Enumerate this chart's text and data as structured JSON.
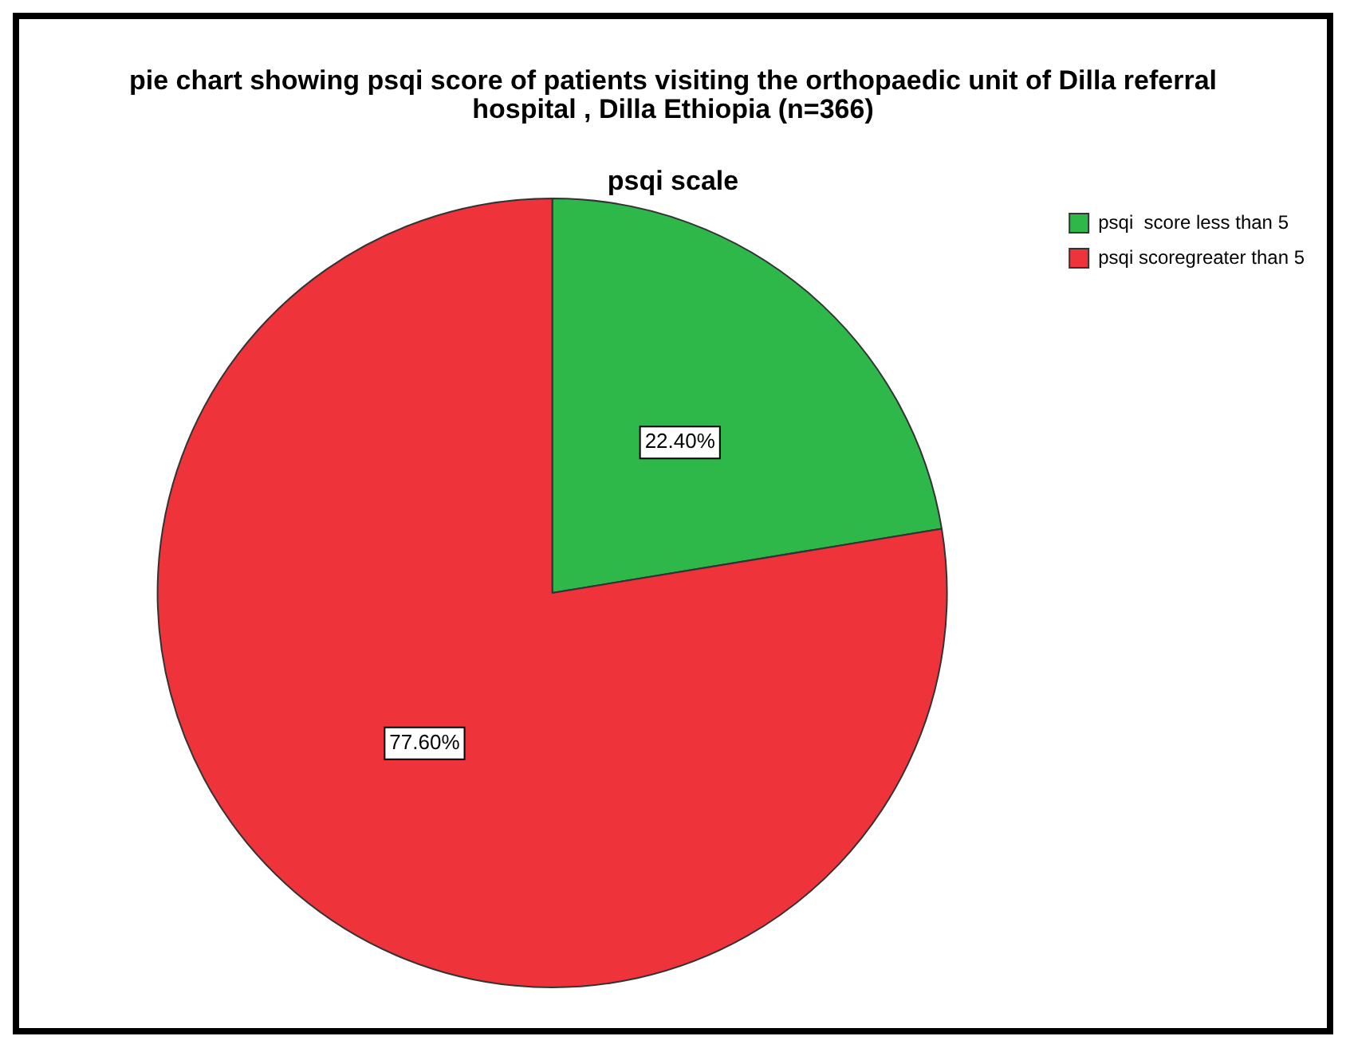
{
  "chart_data": {
    "type": "pie",
    "title": "pie chart showing psqi score of  patients visiting the orthopaedic unit of Dilla referral hospital , Dilla  Ethiopia (n=366)",
    "subtitle": "psqi scale",
    "categories": [
      "psqi  score less than 5",
      "psqi scoregreater than 5"
    ],
    "values": [
      22.4,
      77.6
    ],
    "colors": [
      "#2fb84a",
      "#ef333b"
    ],
    "value_labels": [
      "22.40%",
      "77.60%"
    ],
    "legend": "top right"
  }
}
